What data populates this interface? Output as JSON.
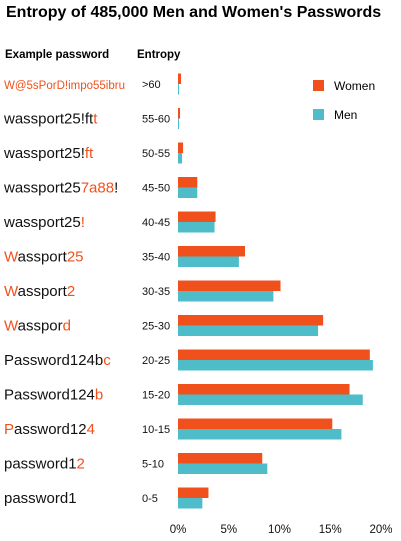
{
  "colors": {
    "women": "#F0511C",
    "men": "#4EBDC9",
    "text": "#111111",
    "highlight": "#F0511C"
  },
  "chart_data": {
    "type": "bar",
    "orientation": "horizontal",
    "title": "Entropy of 485,000 Men and Women's Passwords",
    "headers": {
      "password": "Example password",
      "entropy": "Entropy"
    },
    "categories": [
      ">60",
      "55-60",
      "50-55",
      "45-50",
      "40-45",
      "35-40",
      "30-35",
      "25-30",
      "20-25",
      "15-20",
      "10-15",
      "5-10",
      "0-5"
    ],
    "example_passwords": [
      [
        {
          "t": "W@5sPorD!impo55ibru",
          "h": true
        }
      ],
      [
        {
          "t": "wassport25!ft",
          "h": false
        },
        {
          "t": "t",
          "h": true
        }
      ],
      [
        {
          "t": "wassport25!",
          "h": false
        },
        {
          "t": "ft",
          "h": true
        }
      ],
      [
        {
          "t": "wassport25",
          "h": false
        },
        {
          "t": "7a88",
          "h": true
        },
        {
          "t": "!",
          "h": false
        }
      ],
      [
        {
          "t": "wassport25",
          "h": false
        },
        {
          "t": "!",
          "h": true
        }
      ],
      [
        {
          "t": "W",
          "h": true
        },
        {
          "t": "assport",
          "h": false
        },
        {
          "t": "25",
          "h": true
        }
      ],
      [
        {
          "t": "W",
          "h": true
        },
        {
          "t": "assport",
          "h": false
        },
        {
          "t": "2",
          "h": true
        }
      ],
      [
        {
          "t": "W",
          "h": true
        },
        {
          "t": "asspor",
          "h": false
        },
        {
          "t": "d",
          "h": true
        }
      ],
      [
        {
          "t": "Password124b",
          "h": false
        },
        {
          "t": "c",
          "h": true
        }
      ],
      [
        {
          "t": "Password124",
          "h": false
        },
        {
          "t": "b",
          "h": true
        }
      ],
      [
        {
          "t": "P",
          "h": true
        },
        {
          "t": "assword12",
          "h": false
        },
        {
          "t": "4",
          "h": true
        }
      ],
      [
        {
          "t": "password1",
          "h": false
        },
        {
          "t": "2",
          "h": true
        }
      ],
      [
        {
          "t": "password1",
          "h": false
        }
      ]
    ],
    "series": [
      {
        "name": "Women",
        "values": [
          0.3,
          0.2,
          0.5,
          1.9,
          3.7,
          6.6,
          10.1,
          14.3,
          18.9,
          16.9,
          15.2,
          8.3,
          3.0
        ]
      },
      {
        "name": "Men",
        "values": [
          0.1,
          0.1,
          0.4,
          1.9,
          3.6,
          6.0,
          9.4,
          13.8,
          19.2,
          18.2,
          16.1,
          8.8,
          2.4
        ]
      }
    ],
    "xlim": [
      0,
      20
    ],
    "xticks": [
      "0%",
      "5%",
      "10%",
      "15%",
      "20%"
    ],
    "legend_position": "top-right",
    "grid": false
  }
}
